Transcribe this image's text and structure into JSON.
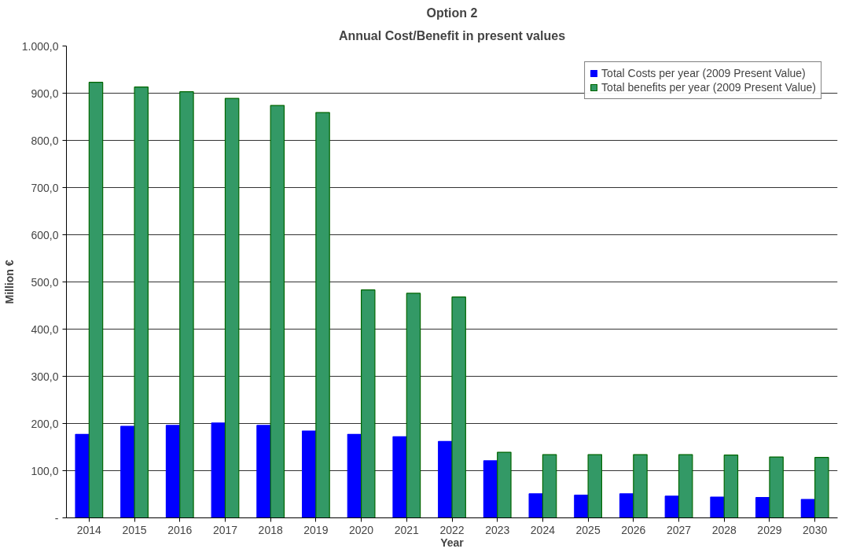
{
  "chart_data": {
    "type": "bar",
    "title": "Option 2",
    "subtitle": "Annual Cost/Benefit in present values",
    "xlabel": "Year",
    "ylabel": "Million €",
    "categories": [
      "2014",
      "2015",
      "2016",
      "2017",
      "2018",
      "2019",
      "2020",
      "2021",
      "2022",
      "2023",
      "2024",
      "2025",
      "2026",
      "2027",
      "2028",
      "2029",
      "2030"
    ],
    "series": [
      {
        "name": "Total Costs per year (2009 Present Value)",
        "color": "#0000ff",
        "values": [
          177,
          194,
          196,
          201,
          196,
          184,
          177,
          172,
          162,
          121,
          51,
          48,
          51,
          46,
          44,
          43,
          39
        ]
      },
      {
        "name": "Total benefits per year (2009 Present Value)",
        "color": "#339966",
        "values": [
          923,
          913,
          903,
          889,
          874,
          859,
          483,
          476,
          468,
          139,
          134,
          134,
          134,
          134,
          133,
          129,
          128
        ]
      }
    ],
    "ylim": [
      0,
      1000
    ],
    "yticks": [
      {
        "value": 0,
        "label": "-"
      },
      {
        "value": 100,
        "label": "100,0"
      },
      {
        "value": 200,
        "label": "200,0"
      },
      {
        "value": 300,
        "label": "300,0"
      },
      {
        "value": 400,
        "label": "400,0"
      },
      {
        "value": 500,
        "label": "500,0"
      },
      {
        "value": 600,
        "label": "600,0"
      },
      {
        "value": 700,
        "label": "700,0"
      },
      {
        "value": 800,
        "label": "800,0"
      },
      {
        "value": 900,
        "label": "900,0"
      },
      {
        "value": 1000,
        "label": "1.000,0"
      }
    ],
    "grid": "y",
    "legend": "top right"
  }
}
